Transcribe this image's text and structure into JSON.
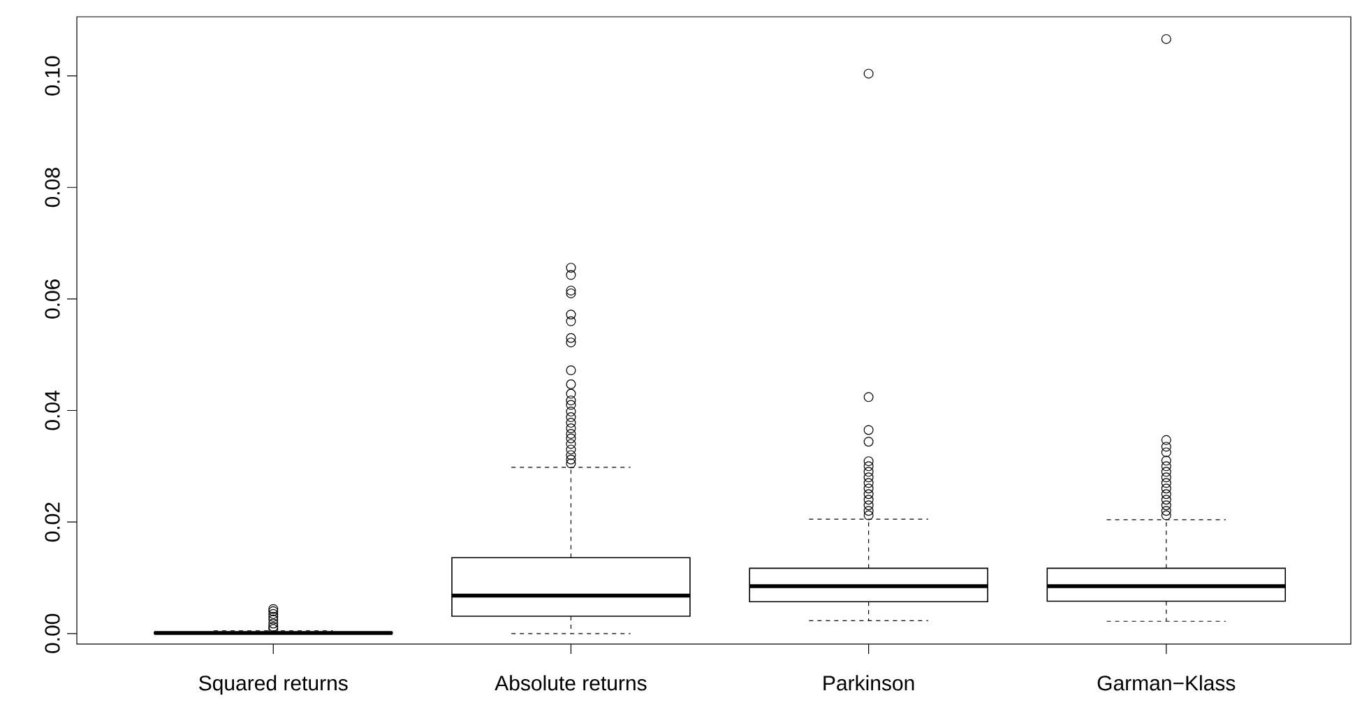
{
  "chart_data": {
    "type": "box",
    "categories": [
      "Squared returns",
      "Absolute returns",
      "Parkinson",
      "Garman−Klass"
    ],
    "boxes": [
      {
        "low": 0,
        "q1": 3e-05,
        "median": 0.0001,
        "q3": 0.0002,
        "high": 0.0005,
        "outliers": [
          0.0008,
          0.0012,
          0.0018,
          0.0025,
          0.003,
          0.0035,
          0.004,
          0.0044
        ]
      },
      {
        "low": 0,
        "q1": 0.0031,
        "median": 0.0068,
        "q3": 0.0136,
        "high": 0.0298,
        "outliers": [
          0.0656,
          0.0643,
          0.0615,
          0.061,
          0.0572,
          0.056,
          0.053,
          0.0522,
          0.0472,
          0.0447,
          0.043,
          0.0418,
          0.041,
          0.0398,
          0.0388,
          0.0378,
          0.0368,
          0.0358,
          0.035,
          0.034,
          0.033,
          0.032,
          0.0312,
          0.0305
        ]
      },
      {
        "low": 0.0023,
        "q1": 0.0057,
        "median": 0.0085,
        "q3": 0.0117,
        "high": 0.0205,
        "outliers": [
          0.1004,
          0.0424,
          0.0365,
          0.0344,
          0.0309,
          0.03,
          0.029,
          0.028,
          0.027,
          0.026,
          0.025,
          0.024,
          0.023,
          0.022,
          0.0212
        ]
      },
      {
        "low": 0.0022,
        "q1": 0.0058,
        "median": 0.0085,
        "q3": 0.0117,
        "high": 0.0204,
        "outliers": [
          0.1066,
          0.0347,
          0.0335,
          0.0325,
          0.031,
          0.03,
          0.029,
          0.028,
          0.027,
          0.026,
          0.025,
          0.024,
          0.023,
          0.022,
          0.0212
        ]
      }
    ],
    "ylim": [
      -0.0019,
      0.1106
    ],
    "yticks": [
      {
        "value": 0,
        "label": "0.00"
      },
      {
        "value": 0.02,
        "label": "0.02"
      },
      {
        "value": 0.04,
        "label": "0.04"
      },
      {
        "value": 0.06,
        "label": "0.06"
      },
      {
        "value": 0.08,
        "label": "0.08"
      },
      {
        "value": 0.1,
        "label": "0.10"
      }
    ]
  }
}
